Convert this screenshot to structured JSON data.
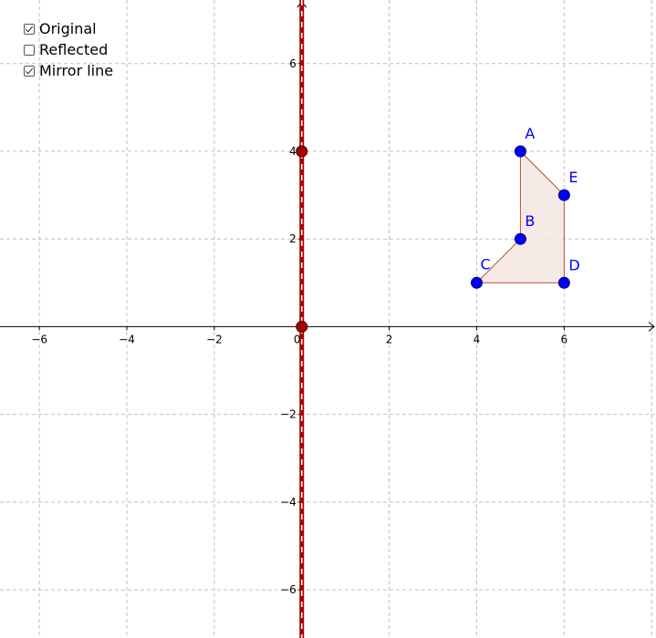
{
  "checkboxes": [
    {
      "label": "Original",
      "checked": true
    },
    {
      "label": "Reflected",
      "checked": false
    },
    {
      "label": "Mirror line",
      "checked": true
    }
  ],
  "axes": {
    "x_range": [
      -6.9,
      8.1
    ],
    "y_range": [
      -7.1,
      7.45
    ],
    "x_ticks": [
      "−6",
      "−4",
      "−2",
      "0",
      "2",
      "4",
      "6"
    ],
    "x_tick_values": [
      -6,
      -4,
      -2,
      0,
      2,
      4,
      6
    ],
    "y_ticks": [
      "6",
      "4",
      "2",
      "−2",
      "−4",
      "−6"
    ],
    "y_tick_values": [
      6,
      4,
      2,
      -2,
      -4,
      -6
    ],
    "grid": true
  },
  "shape": {
    "points": [
      {
        "label": "A",
        "x": 5,
        "y": 4
      },
      {
        "label": "B",
        "x": 5,
        "y": 2
      },
      {
        "label": "C",
        "x": 4,
        "y": 1
      },
      {
        "label": "D",
        "x": 6,
        "y": 1
      },
      {
        "label": "E",
        "x": 6,
        "y": 3
      }
    ],
    "fill_color": "#f5e6e2",
    "edge_color": "#b5533a",
    "point_color": "#0000ff",
    "label_color": "#0000ff"
  },
  "mirror_line": {
    "x": 0,
    "control_points": [
      {
        "x": 0,
        "y": 4
      },
      {
        "x": 0,
        "y": 0
      }
    ],
    "color": "#a80000",
    "dash_color": "#ffffff"
  }
}
